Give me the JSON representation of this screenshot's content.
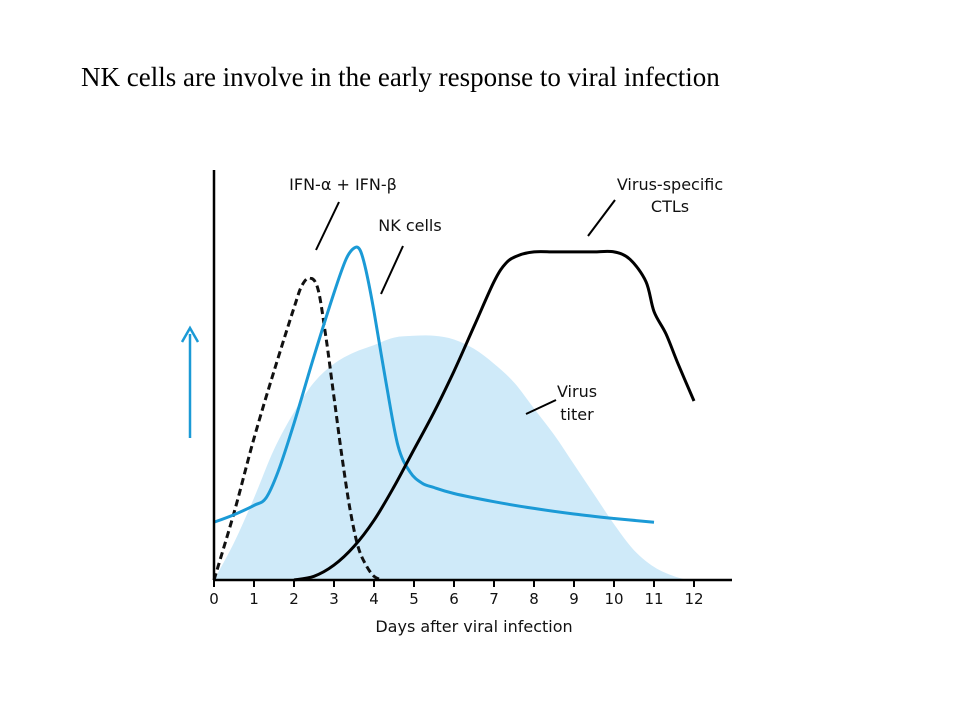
{
  "slide": {
    "title": "NK cells are involve in the early response to viral infection"
  },
  "chart_data": {
    "type": "line",
    "xlabel": "Days after viral infection",
    "ylabel": "",
    "xlim": [
      0,
      13
    ],
    "ylim": [
      0,
      1
    ],
    "x_ticks": [
      "0",
      "1",
      "2",
      "3",
      "4",
      "5",
      "6",
      "7",
      "8",
      "9",
      "10",
      "11",
      "12"
    ],
    "grid": false,
    "y_axis_arrow_color": "#1b9ad6",
    "series": [
      {
        "name": "Virus titer",
        "label_lines": [
          "Virus",
          "titer"
        ],
        "style": "area",
        "color": "#cfeaf9",
        "x": [
          0,
          0.5,
          1,
          1.5,
          2,
          2.5,
          3,
          3.5,
          4,
          4.5,
          5,
          5.5,
          6,
          6.5,
          7,
          7.5,
          8,
          8.5,
          9,
          9.5,
          10,
          10.5,
          11,
          11.5,
          11.85
        ],
        "values": [
          0,
          0.1,
          0.22,
          0.35,
          0.45,
          0.53,
          0.58,
          0.61,
          0.63,
          0.65,
          0.655,
          0.655,
          0.645,
          0.62,
          0.58,
          0.53,
          0.46,
          0.39,
          0.31,
          0.23,
          0.15,
          0.08,
          0.035,
          0.01,
          0
        ]
      },
      {
        "name": "IFN-α + IFN-β",
        "label_lines": [
          "IFN-α + IFN-β"
        ],
        "style": "dashed",
        "color": "#111111",
        "x": [
          0,
          0.5,
          1,
          1.5,
          2,
          2.2,
          2.4,
          2.6,
          2.8,
          3.0,
          3.2,
          3.4,
          3.6,
          3.8,
          4.0,
          4.2
        ],
        "values": [
          0,
          0.18,
          0.38,
          0.56,
          0.73,
          0.79,
          0.81,
          0.78,
          0.65,
          0.49,
          0.33,
          0.19,
          0.09,
          0.04,
          0.01,
          0
        ]
      },
      {
        "name": "NK cells",
        "label_lines": [
          "NK cells"
        ],
        "style": "solid",
        "color": "#1b9ad6",
        "x": [
          0,
          0.5,
          1,
          1.3,
          1.6,
          2,
          2.5,
          3,
          3.3,
          3.5,
          3.65,
          3.8,
          4,
          4.3,
          4.6,
          4.9,
          5.2,
          5.5,
          6,
          7,
          8,
          9,
          10,
          11
        ],
        "values": [
          0.155,
          0.175,
          0.2,
          0.22,
          0.29,
          0.42,
          0.6,
          0.77,
          0.86,
          0.89,
          0.885,
          0.83,
          0.72,
          0.53,
          0.36,
          0.29,
          0.26,
          0.248,
          0.232,
          0.21,
          0.192,
          0.177,
          0.165,
          0.155
        ]
      },
      {
        "name": "Virus-specific CTLs",
        "label_lines": [
          "Virus-specific",
          "CTLs"
        ],
        "style": "solid",
        "color": "#000000",
        "x": [
          2,
          2.5,
          3,
          3.5,
          4,
          4.5,
          5,
          5.5,
          6,
          6.5,
          7,
          7.3,
          7.6,
          8,
          8.5,
          9,
          9.5,
          10,
          10.4,
          10.8,
          11,
          11.3,
          11.6,
          12.0
        ],
        "values": [
          0,
          0.01,
          0.04,
          0.09,
          0.16,
          0.25,
          0.35,
          0.45,
          0.56,
          0.68,
          0.8,
          0.85,
          0.87,
          0.88,
          0.88,
          0.88,
          0.88,
          0.88,
          0.86,
          0.8,
          0.72,
          0.66,
          0.58,
          0.48
        ]
      }
    ]
  }
}
